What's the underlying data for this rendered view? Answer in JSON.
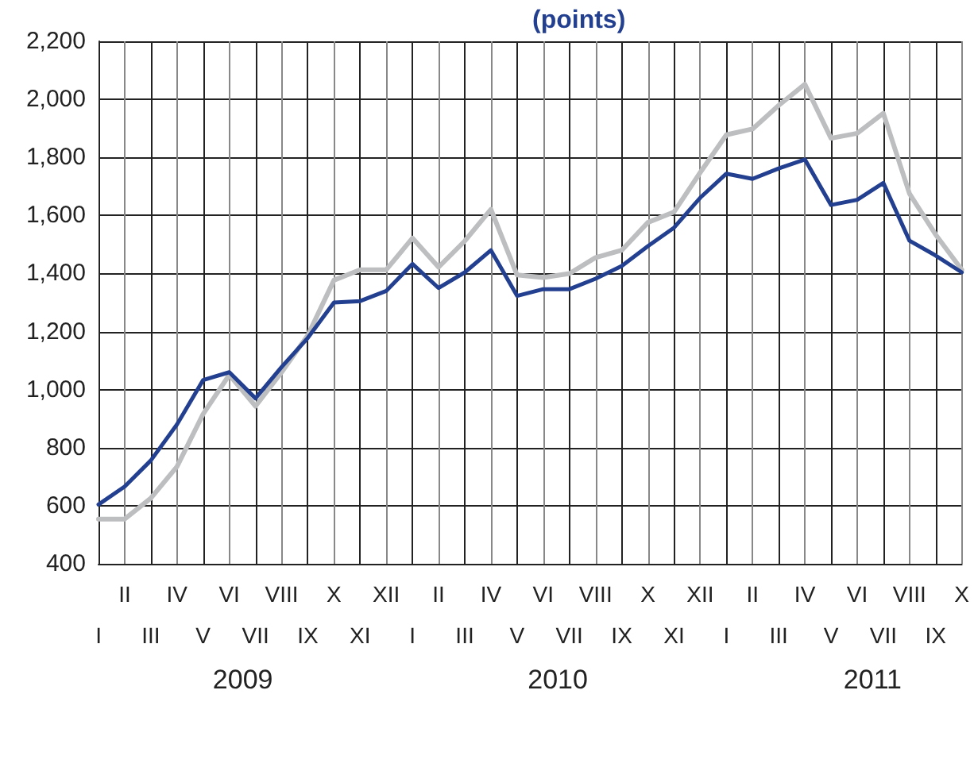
{
  "chart_data": {
    "type": "line",
    "title": "(points)",
    "categories": [
      "I",
      "II",
      "III",
      "IV",
      "V",
      "VI",
      "VII",
      "VIII",
      "IX",
      "X",
      "XI",
      "XII",
      "I",
      "II",
      "III",
      "IV",
      "V",
      "VI",
      "VII",
      "VIII",
      "IX",
      "X",
      "XI",
      "XII",
      "I",
      "II",
      "III",
      "IV",
      "V",
      "VI",
      "VII",
      "VIII",
      "IX",
      "X"
    ],
    "annotations": [
      "2009",
      "2010",
      "2011"
    ],
    "series": [
      {
        "color": "#233f8f",
        "values": [
          604,
          666,
          756,
          880,
          1033,
          1060,
          970,
          1078,
          1178,
          1300,
          1305,
          1340,
          1433,
          1350,
          1404,
          1480,
          1323,
          1346,
          1346,
          1382,
          1426,
          1494,
          1558,
          1661,
          1744,
          1726,
          1762,
          1793,
          1636,
          1654,
          1712,
          1513,
          1462,
          1404
        ]
      },
      {
        "color": "#bdbec0",
        "values": [
          554,
          554,
          626,
          735,
          916,
          1051,
          943,
          1060,
          1187,
          1377,
          1413,
          1413,
          1522,
          1422,
          1512,
          1621,
          1395,
          1386,
          1400,
          1455,
          1480,
          1576,
          1612,
          1748,
          1878,
          1898,
          1979,
          2052,
          1866,
          1883,
          1952,
          1675,
          1534,
          1413
        ]
      }
    ],
    "ylim": [
      400,
      2200
    ],
    "yticks": [
      400,
      600,
      800,
      {
        "value": 1000,
        "label": "1,000"
      },
      {
        "value": 1200,
        "label": "1,200"
      },
      {
        "value": 1400,
        "label": "1,400"
      },
      {
        "value": 1600,
        "label": "1,600"
      },
      {
        "value": 1800,
        "label": "1,800"
      },
      {
        "value": 2000,
        "label": "2,000"
      },
      {
        "value": 2200,
        "label": "2,200"
      }
    ],
    "grid": true,
    "marker": "none",
    "line_style": "solid"
  }
}
